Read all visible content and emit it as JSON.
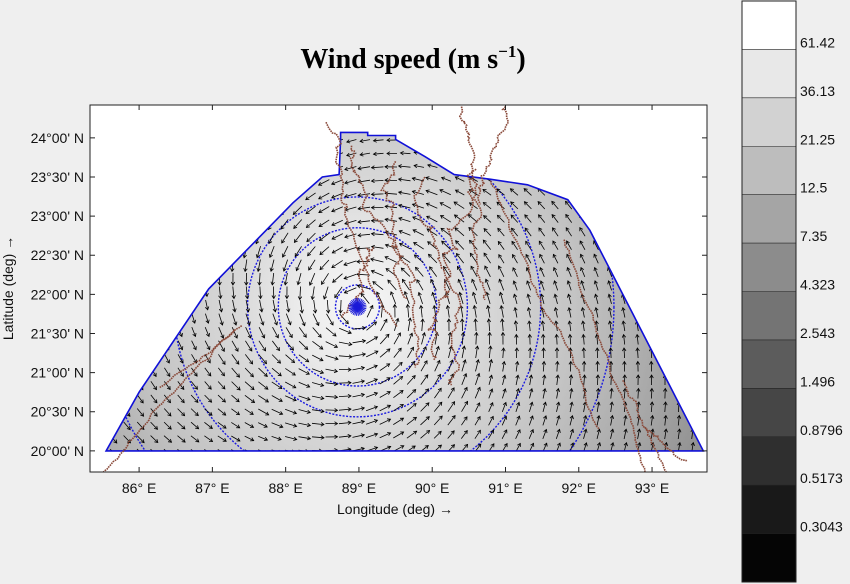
{
  "title": {
    "main": "Wind speed (m s",
    "sup": "−1",
    "close": ")"
  },
  "axes": {
    "xlabel": "Longitude (deg) →",
    "ylabel": "Latitude (deg) →",
    "x_ticks": [
      {
        "value": 86,
        "label": "86° E"
      },
      {
        "value": 87,
        "label": "87° E"
      },
      {
        "value": 88,
        "label": "88° E"
      },
      {
        "value": 89,
        "label": "89° E"
      },
      {
        "value": 90,
        "label": "90° E"
      },
      {
        "value": 91,
        "label": "91° E"
      },
      {
        "value": 92,
        "label": "92° E"
      },
      {
        "value": 93,
        "label": "93° E"
      }
    ],
    "y_ticks": [
      {
        "value": 24.0,
        "label": "24°00' N"
      },
      {
        "value": 23.5,
        "label": "23°30' N"
      },
      {
        "value": 23.0,
        "label": "23°00' N"
      },
      {
        "value": 22.5,
        "label": "22°30' N"
      },
      {
        "value": 22.0,
        "label": "22°00' N"
      },
      {
        "value": 21.5,
        "label": "21°30' N"
      },
      {
        "value": 21.0,
        "label": "21°00' N"
      },
      {
        "value": 20.5,
        "label": "20°30' N"
      },
      {
        "value": 20.0,
        "label": "20°00' N"
      }
    ],
    "xlim": [
      85.33,
      93.75
    ],
    "ylim": [
      19.73,
      24.42
    ]
  },
  "map": {
    "storm_center": {
      "lon": 88.98,
      "lat": 21.84
    },
    "domain_boundary": [
      [
        85.55,
        20.0
      ],
      [
        93.7,
        20.0
      ],
      [
        92.15,
        22.82
      ],
      [
        91.85,
        23.21
      ],
      [
        91.3,
        23.4
      ],
      [
        90.8,
        23.47
      ],
      [
        90.3,
        23.53
      ],
      [
        89.9,
        23.76
      ],
      [
        89.5,
        23.98
      ],
      [
        89.5,
        24.03
      ],
      [
        89.12,
        24.03
      ],
      [
        89.12,
        24.07
      ],
      [
        88.75,
        24.07
      ],
      [
        88.75,
        23.98
      ],
      [
        88.73,
        23.53
      ],
      [
        88.5,
        23.5
      ],
      [
        88.1,
        23.17
      ],
      [
        86.95,
        22.07
      ],
      [
        86.0,
        20.75
      ]
    ],
    "contour_radii_deg": [
      0.3,
      1.08,
      1.5,
      2.5,
      3.5
    ],
    "colors": {
      "boundary": "#1010d8",
      "contour": "#1a1ae0",
      "coastline": "#8a4a3a",
      "vector": "#000000"
    }
  },
  "colorbar": {
    "levels": [
      "61.42",
      "36.13",
      "21.25",
      "12.5",
      "7.35",
      "4.323",
      "2.543",
      "1.496",
      "0.8796",
      "0.5173",
      "0.3043"
    ],
    "colors": [
      "#ffffff",
      "#e8e8e8",
      "#d2d2d2",
      "#bdbdbd",
      "#a5a5a5",
      "#8c8c8c",
      "#747474",
      "#5c5c5c",
      "#464646",
      "#2f2f2f",
      "#191919",
      "#050505"
    ]
  }
}
